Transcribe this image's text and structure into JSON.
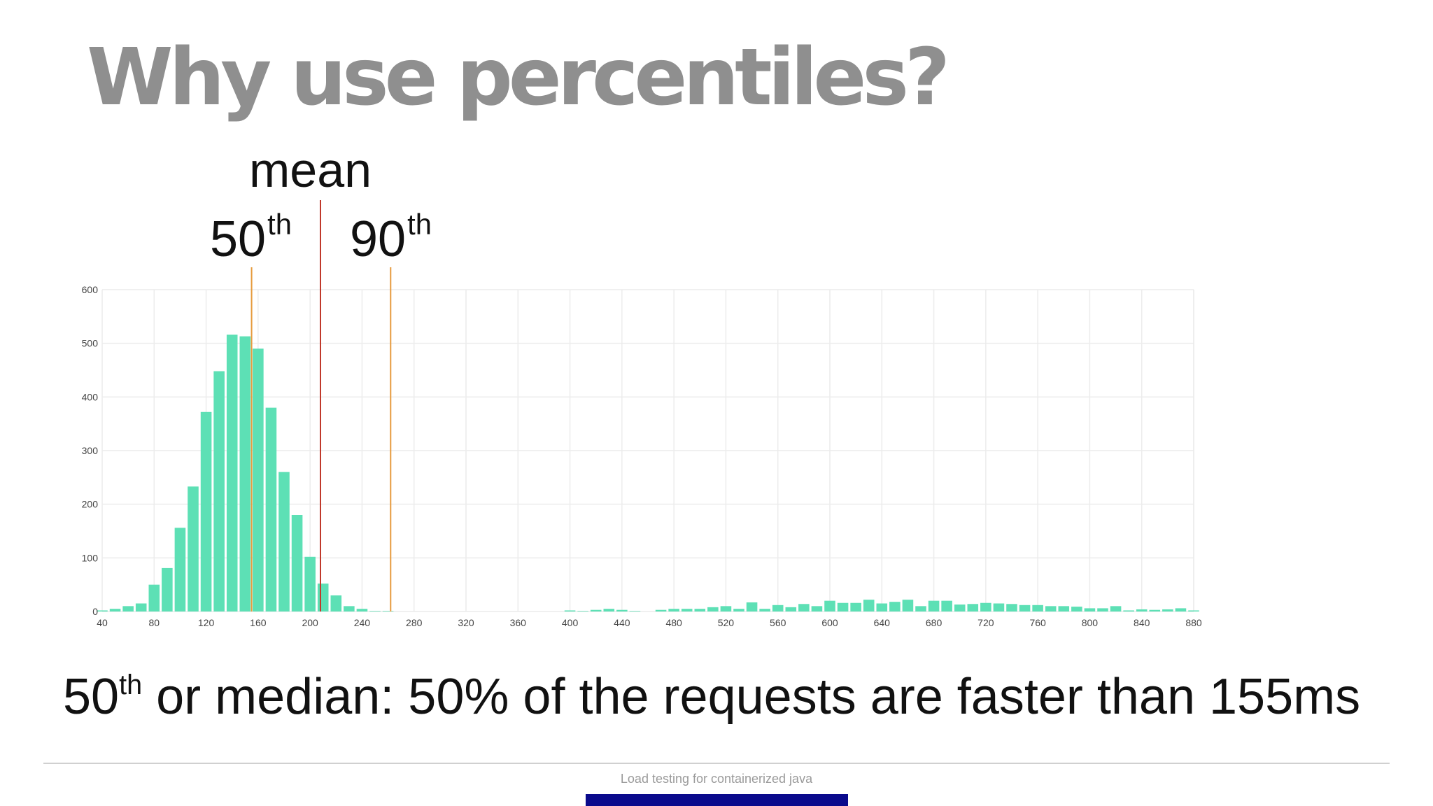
{
  "slide": {
    "title": "Why use percentiles?",
    "caption_sup": "th",
    "caption_prefix": "50",
    "caption_rest": "or median: 50% of the requests are faster than 155ms",
    "footer": "Load testing for containerized java"
  },
  "annotations": {
    "mean_label": "mean",
    "p50_num": "50",
    "p50_sup": "th",
    "p90_num": "90",
    "p90_sup": "th"
  },
  "colors": {
    "bars": "#5de0b5",
    "mean_line": "#c0392b",
    "percentile_line": "#e69a3c",
    "grid": "#ececec",
    "axis_text": "#444444"
  },
  "chart_data": {
    "type": "bar",
    "title": "",
    "xlabel": "",
    "ylabel": "",
    "xlim": [
      40,
      880
    ],
    "ylim": [
      0,
      600
    ],
    "xticks": [
      40,
      80,
      120,
      160,
      200,
      240,
      280,
      320,
      360,
      400,
      440,
      480,
      520,
      560,
      600,
      640,
      680,
      720,
      760,
      800,
      840,
      880
    ],
    "yticks": [
      0,
      100,
      200,
      300,
      400,
      500,
      600
    ],
    "grid": true,
    "bin_width": 10,
    "bins": [
      [
        40,
        2
      ],
      [
        50,
        5
      ],
      [
        60,
        10
      ],
      [
        70,
        15
      ],
      [
        80,
        50
      ],
      [
        90,
        81
      ],
      [
        100,
        156
      ],
      [
        110,
        233
      ],
      [
        120,
        372
      ],
      [
        130,
        448
      ],
      [
        140,
        516
      ],
      [
        150,
        513
      ],
      [
        160,
        490
      ],
      [
        170,
        380
      ],
      [
        180,
        260
      ],
      [
        190,
        180
      ],
      [
        200,
        102
      ],
      [
        210,
        52
      ],
      [
        220,
        30
      ],
      [
        230,
        10
      ],
      [
        240,
        5
      ],
      [
        250,
        1
      ],
      [
        260,
        1
      ],
      [
        400,
        2
      ],
      [
        410,
        1
      ],
      [
        420,
        3
      ],
      [
        430,
        5
      ],
      [
        440,
        3
      ],
      [
        450,
        1
      ],
      [
        470,
        3
      ],
      [
        480,
        5
      ],
      [
        490,
        5
      ],
      [
        500,
        5
      ],
      [
        510,
        8
      ],
      [
        520,
        10
      ],
      [
        530,
        5
      ],
      [
        540,
        17
      ],
      [
        550,
        5
      ],
      [
        560,
        12
      ],
      [
        570,
        8
      ],
      [
        580,
        14
      ],
      [
        590,
        10
      ],
      [
        600,
        20
      ],
      [
        610,
        16
      ],
      [
        620,
        16
      ],
      [
        630,
        22
      ],
      [
        640,
        15
      ],
      [
        650,
        18
      ],
      [
        660,
        22
      ],
      [
        670,
        10
      ],
      [
        680,
        20
      ],
      [
        690,
        20
      ],
      [
        700,
        13
      ],
      [
        710,
        14
      ],
      [
        720,
        16
      ],
      [
        730,
        15
      ],
      [
        740,
        14
      ],
      [
        750,
        12
      ],
      [
        760,
        12
      ],
      [
        770,
        10
      ],
      [
        780,
        10
      ],
      [
        790,
        9
      ],
      [
        800,
        6
      ],
      [
        810,
        6
      ],
      [
        820,
        10
      ],
      [
        830,
        2
      ],
      [
        840,
        4
      ],
      [
        850,
        3
      ],
      [
        860,
        4
      ],
      [
        870,
        6
      ],
      [
        880,
        2
      ]
    ],
    "markers": [
      {
        "label": "50th",
        "x": 155,
        "kind": "percentile"
      },
      {
        "label": "mean",
        "x": 208,
        "kind": "mean"
      },
      {
        "label": "90th",
        "x": 262,
        "kind": "percentile"
      }
    ]
  }
}
